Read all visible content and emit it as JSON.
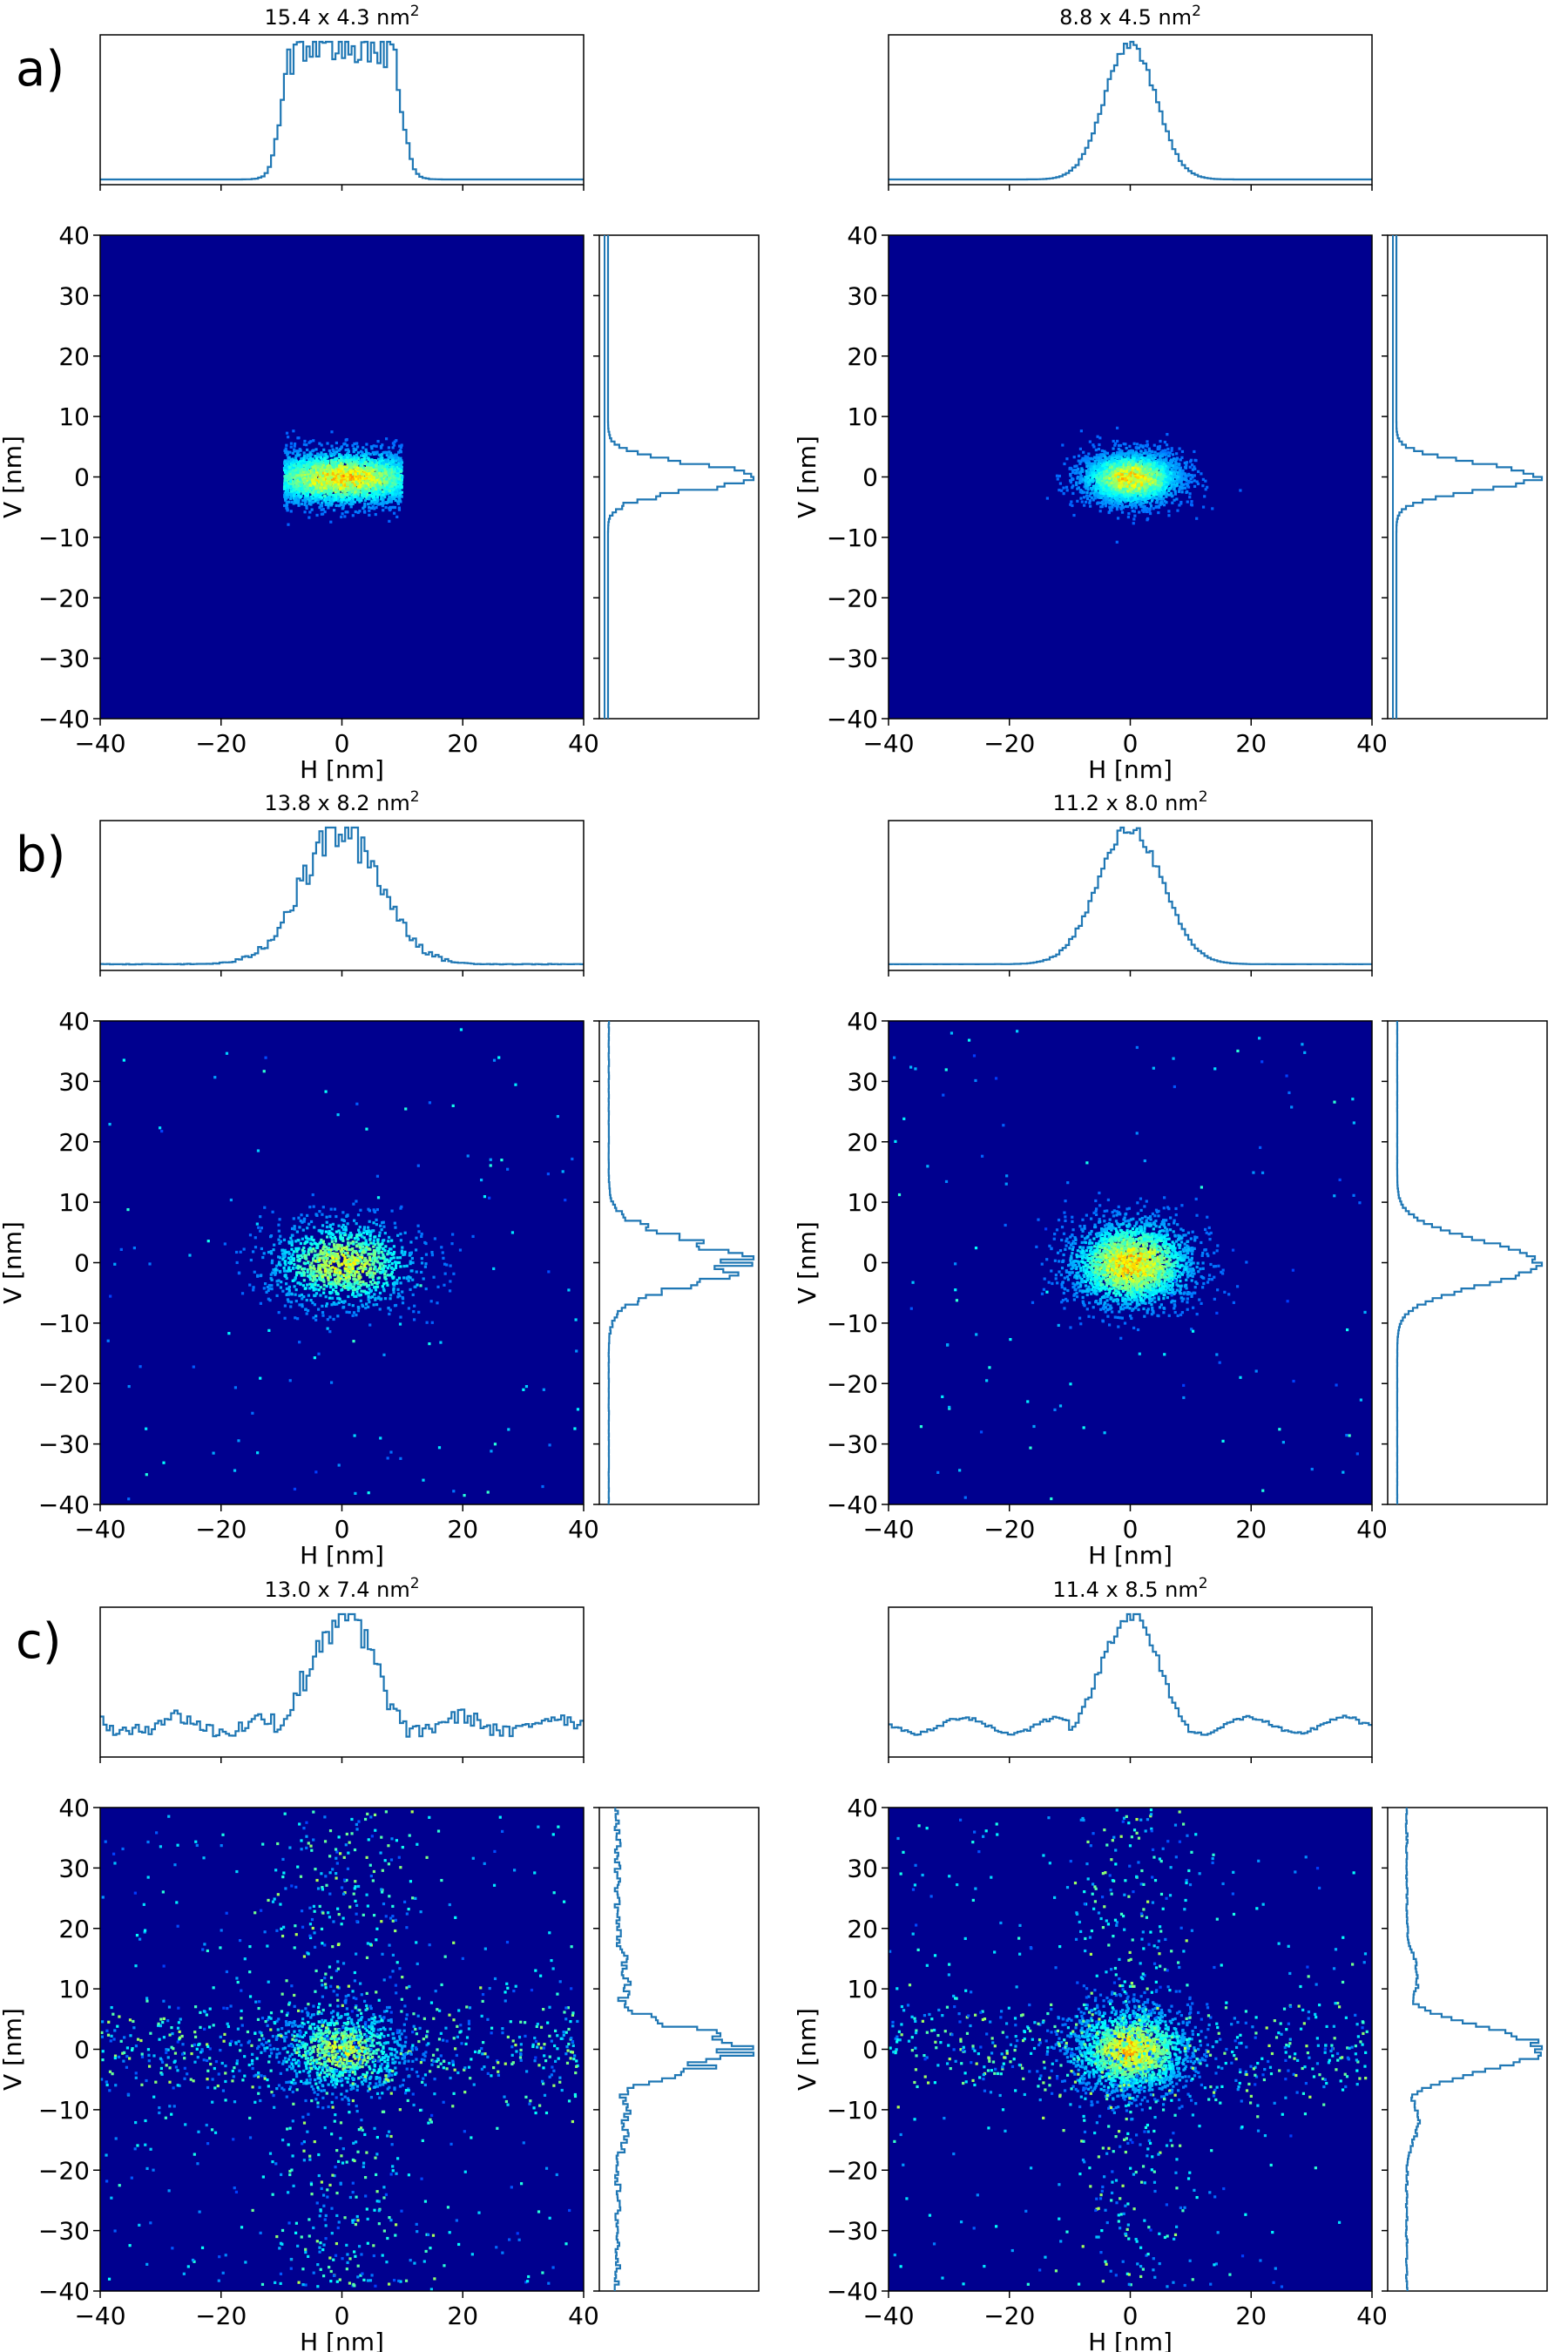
{
  "colors": {
    "heatmap_background": "#00008f",
    "histogram_line": "#1f77b4"
  },
  "chart_data": [
    {
      "type": "heatmap",
      "panel_label": "a)",
      "title": "15.4 x 4.3 nm",
      "title_sup": "2",
      "xlabel": "H [nm]",
      "ylabel": "V [nm]",
      "xlim": [
        -40,
        40
      ],
      "ylim": [
        -40,
        40
      ],
      "xticks": [
        -40,
        -20,
        0,
        20,
        40
      ],
      "yticks": [
        40,
        30,
        20,
        10,
        0,
        -10,
        -20,
        -30,
        -40
      ],
      "tick_labels_x": [
        "−40",
        "−20",
        "0",
        "20",
        "40"
      ],
      "tick_labels_y": [
        "40",
        "30",
        "20",
        "10",
        "0",
        "−10",
        "−20",
        "−30",
        "−40"
      ],
      "size_h": 15.4,
      "size_v": 4.3,
      "spread_h": 7.5,
      "spread_v": 2.3,
      "bg_level": 0.0,
      "cross_level": 0.0,
      "profile_shape": "flat",
      "noise": 0.3,
      "density": 1.0
    },
    {
      "type": "heatmap",
      "panel_label": "",
      "title": "8.8 x 4.5 nm",
      "title_sup": "2",
      "xlabel": "H [nm]",
      "ylabel": "V [nm]",
      "xlim": [
        -40,
        40
      ],
      "ylim": [
        -40,
        40
      ],
      "xticks": [
        -40,
        -20,
        0,
        20,
        40
      ],
      "yticks": [
        40,
        30,
        20,
        10,
        0,
        -10,
        -20,
        -30,
        -40
      ],
      "tick_labels_x": [
        "−40",
        "−20",
        "0",
        "20",
        "40"
      ],
      "tick_labels_y": [
        "40",
        "30",
        "20",
        "10",
        "0",
        "−10",
        "−20",
        "−30",
        "−40"
      ],
      "size_h": 8.8,
      "size_v": 4.5,
      "spread_h": 4.2,
      "spread_v": 2.2,
      "bg_level": 0.0,
      "cross_level": 0.0,
      "profile_shape": "gauss",
      "noise": 0.08,
      "density": 1.0
    },
    {
      "type": "heatmap",
      "panel_label": "b)",
      "title": "13.8 x 8.2 nm",
      "title_sup": "2",
      "xlabel": "H [nm]",
      "ylabel": "V [nm]",
      "xlim": [
        -40,
        40
      ],
      "ylim": [
        -40,
        40
      ],
      "xticks": [
        -40,
        -20,
        0,
        20,
        40
      ],
      "yticks": [
        40,
        30,
        20,
        10,
        0,
        -10,
        -20,
        -30,
        -40
      ],
      "tick_labels_x": [
        "−40",
        "−20",
        "0",
        "20",
        "40"
      ],
      "tick_labels_y": [
        "40",
        "30",
        "20",
        "10",
        "0",
        "−10",
        "−20",
        "−30",
        "−40"
      ],
      "size_h": 13.8,
      "size_v": 8.2,
      "spread_h": 6.5,
      "spread_v": 3.8,
      "bg_level": 0.05,
      "cross_level": 0.0,
      "profile_shape": "gauss",
      "noise": 0.35,
      "density": 0.35
    },
    {
      "type": "heatmap",
      "panel_label": "",
      "title": "11.2 x 8.0 nm",
      "title_sup": "2",
      "xlabel": "H [nm]",
      "ylabel": "V [nm]",
      "xlim": [
        -40,
        40
      ],
      "ylim": [
        -40,
        40
      ],
      "xticks": [
        -40,
        -20,
        0,
        20,
        40
      ],
      "yticks": [
        40,
        30,
        20,
        10,
        0,
        -10,
        -20,
        -30,
        -40
      ],
      "tick_labels_x": [
        "−40",
        "−20",
        "0",
        "20",
        "40"
      ],
      "tick_labels_y": [
        "40",
        "30",
        "20",
        "10",
        "0",
        "−10",
        "−20",
        "−30",
        "−40"
      ],
      "size_h": 11.2,
      "size_v": 8.0,
      "spread_h": 5.3,
      "spread_v": 3.7,
      "bg_level": 0.05,
      "cross_level": 0.0,
      "profile_shape": "gauss",
      "noise": 0.1,
      "density": 0.85
    },
    {
      "type": "heatmap",
      "panel_label": "c)",
      "title": "13.0 x 7.4 nm",
      "title_sup": "2",
      "xlabel": "H [nm]",
      "ylabel": "V [nm]",
      "xlim": [
        -40,
        40
      ],
      "ylim": [
        -40,
        40
      ],
      "xticks": [
        -40,
        -20,
        0,
        20,
        40
      ],
      "yticks": [
        40,
        30,
        20,
        10,
        0,
        -10,
        -20,
        -30,
        -40
      ],
      "tick_labels_x": [
        "−40",
        "−20",
        "0",
        "20",
        "40"
      ],
      "tick_labels_y": [
        "40",
        "30",
        "20",
        "10",
        "0",
        "−10",
        "−20",
        "−30",
        "−40"
      ],
      "size_h": 13.0,
      "size_v": 7.4,
      "spread_h": 5.5,
      "spread_v": 3.5,
      "bg_level": 0.15,
      "cross_level": 0.12,
      "profile_shape": "gauss",
      "noise": 0.45,
      "density": 0.18
    },
    {
      "type": "heatmap",
      "panel_label": "",
      "title": "11.4 x 8.5 nm",
      "title_sup": "2",
      "xlabel": "H [nm]",
      "ylabel": "V [nm]",
      "xlim": [
        -40,
        40
      ],
      "ylim": [
        -40,
        40
      ],
      "xticks": [
        -40,
        -20,
        0,
        20,
        40
      ],
      "yticks": [
        40,
        30,
        20,
        10,
        0,
        -10,
        -20,
        -30,
        -40
      ],
      "tick_labels_x": [
        "−40",
        "−20",
        "0",
        "20",
        "40"
      ],
      "tick_labels_y": [
        "40",
        "30",
        "20",
        "10",
        "0",
        "−10",
        "−20",
        "−30",
        "−40"
      ],
      "size_h": 11.4,
      "size_v": 8.5,
      "spread_h": 5.0,
      "spread_v": 3.6,
      "bg_level": 0.1,
      "cross_level": 0.1,
      "profile_shape": "gauss",
      "noise": 0.12,
      "density": 0.6
    }
  ]
}
